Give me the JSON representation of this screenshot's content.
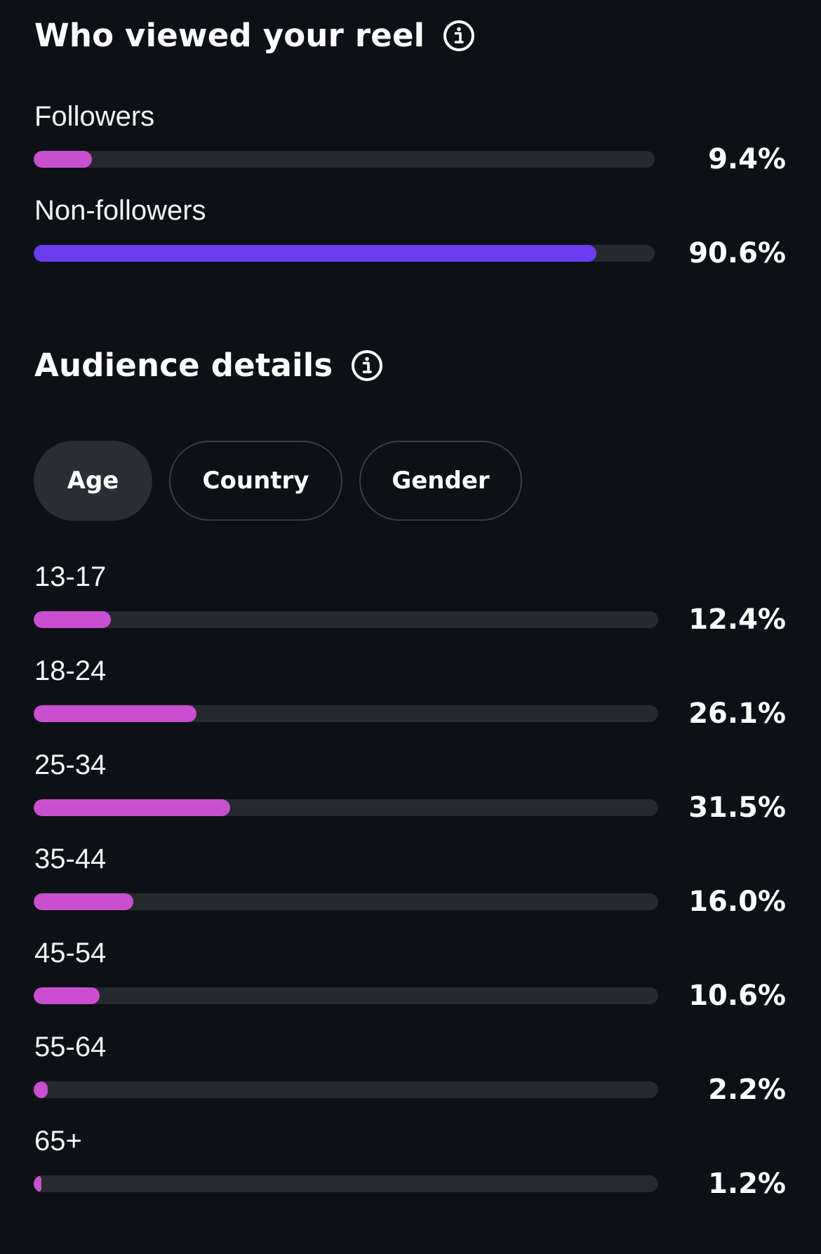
{
  "who_viewed": {
    "title": "Who viewed your reel",
    "items": [
      {
        "label": "Followers",
        "percent": "9.4%",
        "value": 9.4,
        "color": "#c94fd0"
      },
      {
        "label": "Non-followers",
        "percent": "90.6%",
        "value": 90.6,
        "color": "#6c3cf0"
      }
    ]
  },
  "audience": {
    "title": "Audience details",
    "tabs": [
      {
        "label": "Age",
        "active": true
      },
      {
        "label": "Country",
        "active": false
      },
      {
        "label": "Gender",
        "active": false
      }
    ],
    "bar_color": "#c94fd0",
    "rows": [
      {
        "label": "13-17",
        "percent": "12.4%",
        "value": 12.4
      },
      {
        "label": "18-24",
        "percent": "26.1%",
        "value": 26.1
      },
      {
        "label": "25-34",
        "percent": "31.5%",
        "value": 31.5
      },
      {
        "label": "35-44",
        "percent": "16.0%",
        "value": 16.0
      },
      {
        "label": "45-54",
        "percent": "10.6%",
        "value": 10.6
      },
      {
        "label": "55-64",
        "percent": "2.2%",
        "value": 2.2
      },
      {
        "label": "65+",
        "percent": "1.2%",
        "value": 1.2
      }
    ]
  },
  "colors": {
    "background": "#0d1015",
    "track": "#26292e"
  }
}
